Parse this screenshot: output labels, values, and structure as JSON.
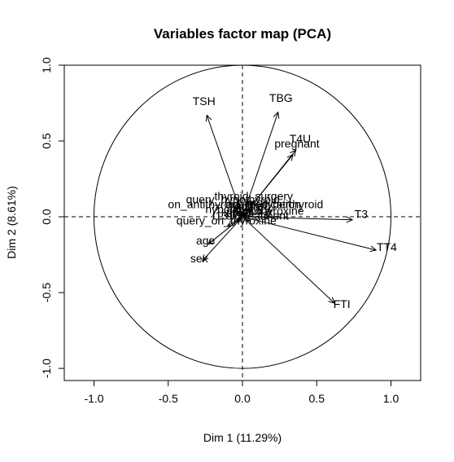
{
  "chart_data": {
    "type": "scatter",
    "subtype": "pca-variables-factor-map",
    "title": "Variables factor map (PCA)",
    "xlabel": "Dim 1 (11.29%)",
    "ylabel": "Dim 2 (8.61%)",
    "xlim": [
      -1.2,
      1.2
    ],
    "ylim": [
      -1.08,
      1.0
    ],
    "xticks": [
      -1.0,
      -0.5,
      0.0,
      0.5,
      1.0
    ],
    "yticks": [
      -1.0,
      -0.5,
      0.0,
      0.5,
      1.0
    ],
    "xtick_labels": [
      "-1.0",
      "-0.5",
      "0.0",
      "0.5",
      "1.0"
    ],
    "ytick_labels": [
      "-1.0",
      "-0.5",
      "0.0",
      "0.5",
      "1.0"
    ],
    "correlation_circle": true,
    "reference_lines": true,
    "variables": [
      {
        "name": "TSH",
        "x": -0.24,
        "y": 0.67
      },
      {
        "name": "TBG",
        "x": 0.24,
        "y": 0.69
      },
      {
        "name": "T4U",
        "x": 0.36,
        "y": 0.44
      },
      {
        "name": "pregnant",
        "x": 0.34,
        "y": 0.41
      },
      {
        "name": "thyroid_surgery",
        "x": 0.07,
        "y": 0.09
      },
      {
        "name": "query_hypothyroid",
        "x": -0.06,
        "y": 0.07
      },
      {
        "name": "tumor",
        "x": 0.06,
        "y": 0.05
      },
      {
        "name": "on_antithyroid_medication",
        "x": -0.05,
        "y": 0.04
      },
      {
        "name": "goitre",
        "x": 0.04,
        "y": 0.03
      },
      {
        "name": "query_hyperthyroid",
        "x": 0.2,
        "y": 0.04
      },
      {
        "name": "hypopituitary",
        "x": -0.03,
        "y": 0.01
      },
      {
        "name": "psych",
        "x": 0.03,
        "y": 0.0
      },
      {
        "name": "on_thyroxine",
        "x": 0.18,
        "y": 0.0
      },
      {
        "name": "T3",
        "x": 0.74,
        "y": -0.02
      },
      {
        "name": "lithium",
        "x": -0.03,
        "y": -0.01
      },
      {
        "name": "sick",
        "x": -0.04,
        "y": -0.03
      },
      {
        "name": "I131_treatment",
        "x": 0.05,
        "y": -0.03
      },
      {
        "name": "query_on_thyroxine",
        "x": -0.1,
        "y": -0.06
      },
      {
        "name": "age",
        "x": -0.23,
        "y": -0.18
      },
      {
        "name": "sex",
        "x": -0.27,
        "y": -0.29
      },
      {
        "name": "TT4",
        "x": 0.9,
        "y": -0.22
      },
      {
        "name": "FTI",
        "x": 0.62,
        "y": -0.57
      }
    ]
  }
}
